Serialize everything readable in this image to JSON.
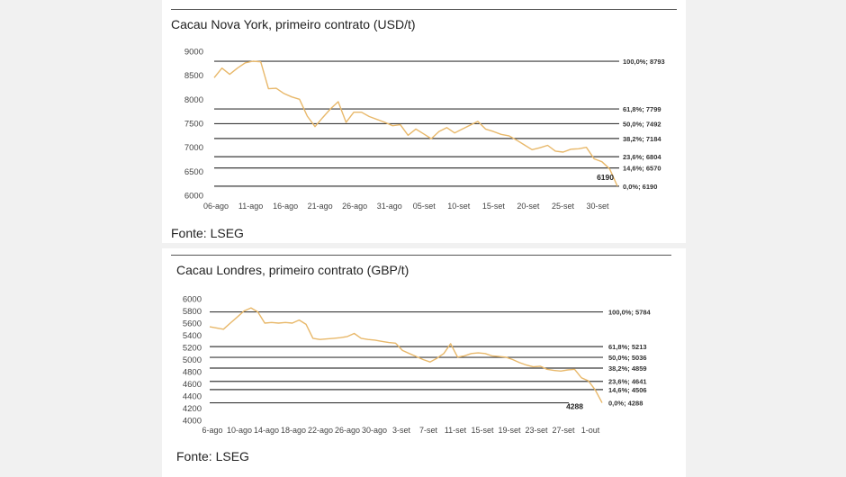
{
  "chart_data": [
    {
      "type": "line",
      "title": "Cacau Nova York, primeiro contrato (USD/t)",
      "source": "Fonte: LSEG",
      "ylim": [
        6000,
        9000
      ],
      "yticks": [
        9000,
        8500,
        8000,
        7500,
        7000,
        6500,
        6000
      ],
      "xlabels": [
        "06-ago",
        "11-ago",
        "16-ago",
        "21-ago",
        "26-ago",
        "31-ago",
        "05-set",
        "10-set",
        "15-set",
        "20-set",
        "25-set",
        "30-set"
      ],
      "line_color": "#e8b86a",
      "series": [
        {
          "name": "Cacau NY",
          "values": [
            8450,
            8650,
            8520,
            8650,
            8760,
            8793,
            8780,
            8220,
            8230,
            8120,
            8050,
            8000,
            7650,
            7430,
            7620,
            7800,
            7950,
            7520,
            7730,
            7730,
            7640,
            7580,
            7520,
            7450,
            7470,
            7250,
            7380,
            7280,
            7180,
            7330,
            7410,
            7300,
            7380,
            7460,
            7540,
            7380,
            7330,
            7270,
            7240,
            7150,
            7050,
            6950,
            6990,
            7040,
            6920,
            6900,
            6960,
            6970,
            7000,
            6760,
            6700,
            6550,
            6190
          ]
        }
      ],
      "fib_levels": [
        {
          "label": "100,0%; 8793",
          "value": 8793
        },
        {
          "label": "61,8%; 7799",
          "value": 7799
        },
        {
          "label": "50,0%; 7492",
          "value": 7492
        },
        {
          "label": "38,2%; 7184",
          "value": 7184
        },
        {
          "label": "23,6%; 6804",
          "value": 6804
        },
        {
          "label": "14,6%; 6570",
          "value": 6570
        },
        {
          "label": "0,0%; 6190",
          "value": 6190
        }
      ],
      "last_value_label": "6190"
    },
    {
      "type": "line",
      "title": "Cacau Londres, primeiro contrato (GBP/t)",
      "source": "Fonte: LSEG",
      "ylim": [
        4000,
        6000
      ],
      "yticks": [
        6000,
        5800,
        5600,
        5400,
        5200,
        5000,
        4800,
        4600,
        4400,
        4200,
        4000
      ],
      "xlabels": [
        "6-ago",
        "10-ago",
        "14-ago",
        "18-ago",
        "22-ago",
        "26-ago",
        "30-ago",
        "3-set",
        "7-set",
        "11-set",
        "15-set",
        "19-set",
        "23-set",
        "27-set",
        "1-out"
      ],
      "line_color": "#e8b86a",
      "series": [
        {
          "name": "Cacau Londres",
          "values": [
            5540,
            5520,
            5500,
            5600,
            5700,
            5800,
            5850,
            5784,
            5600,
            5610,
            5600,
            5610,
            5600,
            5650,
            5580,
            5350,
            5330,
            5340,
            5350,
            5360,
            5380,
            5430,
            5350,
            5330,
            5320,
            5300,
            5280,
            5270,
            5150,
            5100,
            5050,
            5000,
            4960,
            5020,
            5100,
            5260,
            5040,
            5060,
            5100,
            5110,
            5100,
            5060,
            5050,
            5040,
            5000,
            4950,
            4910,
            4880,
            4890,
            4840,
            4820,
            4810,
            4830,
            4840,
            4700,
            4650,
            4500,
            4288
          ]
        }
      ],
      "fib_levels": [
        {
          "label": "100,0%; 5784",
          "value": 5784
        },
        {
          "label": "61,8%; 5213",
          "value": 5213
        },
        {
          "label": "50,0%; 5036",
          "value": 5036
        },
        {
          "label": "38,2%; 4859",
          "value": 4859
        },
        {
          "label": "23,6%; 4641",
          "value": 4641
        },
        {
          "label": "14,6%; 4506",
          "value": 4506
        },
        {
          "label": "0,0%; 4288",
          "value": 4288
        }
      ],
      "last_value_label": "4288"
    }
  ]
}
